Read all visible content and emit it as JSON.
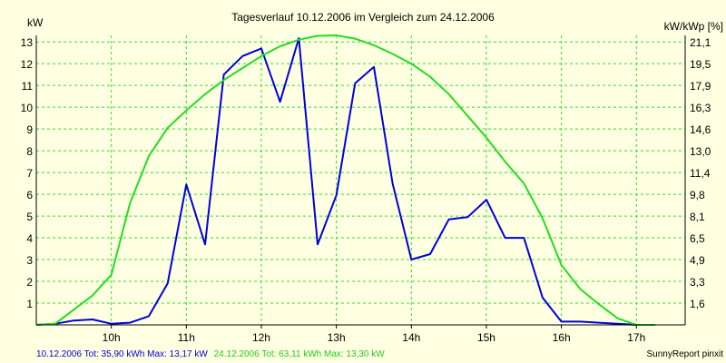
{
  "chart_data": {
    "type": "line",
    "title": "Tagesverlauf 10.12.2006 im Vergleich zum 24.12.2006",
    "ylabel_left": "kW",
    "ylabel_right": "kW/kWp [%]",
    "x_ticks": [
      {
        "label": "10h",
        "x": 10
      },
      {
        "label": "11h",
        "x": 11
      },
      {
        "label": "12h",
        "x": 12
      },
      {
        "label": "13h",
        "x": 13
      },
      {
        "label": "14h",
        "x": 14
      },
      {
        "label": "15h",
        "x": 15
      },
      {
        "label": "16h",
        "x": 16
      },
      {
        "label": "17h",
        "x": 17
      }
    ],
    "xlim": [
      9.0,
      17.65
    ],
    "ylim": [
      0,
      13.3
    ],
    "y_ticks_left": [
      "1",
      "2",
      "3",
      "4",
      "5",
      "6",
      "7",
      "8",
      "9",
      "10",
      "11",
      "12",
      "13"
    ],
    "y_ticks_right": [
      {
        "label": "1,6",
        "y": 1
      },
      {
        "label": "3,3",
        "y": 2
      },
      {
        "label": "4,9",
        "y": 3
      },
      {
        "label": "6,5",
        "y": 4
      },
      {
        "label": "8,1",
        "y": 5
      },
      {
        "label": "9,8",
        "y": 6
      },
      {
        "label": "11,4",
        "y": 7
      },
      {
        "label": "13,0",
        "y": 8
      },
      {
        "label": "14,6",
        "y": 9
      },
      {
        "label": "16,3",
        "y": 10
      },
      {
        "label": "17,9",
        "y": 11
      },
      {
        "label": "19,5",
        "y": 12
      },
      {
        "label": "21,1",
        "y": 13
      }
    ],
    "grid": true,
    "series": [
      {
        "color": "#0000dd",
        "points": [
          [
            9.0,
            0.0
          ],
          [
            9.25,
            0.05
          ],
          [
            9.5,
            0.2
          ],
          [
            9.75,
            0.25
          ],
          [
            10.0,
            0.05
          ],
          [
            10.25,
            0.1
          ],
          [
            10.5,
            0.4
          ],
          [
            10.75,
            1.9
          ],
          [
            11.0,
            6.45
          ],
          [
            11.25,
            3.7
          ],
          [
            11.5,
            11.5
          ],
          [
            11.75,
            12.35
          ],
          [
            12.0,
            12.7
          ],
          [
            12.25,
            10.25
          ],
          [
            12.5,
            13.17
          ],
          [
            12.75,
            3.7
          ],
          [
            13.0,
            5.95
          ],
          [
            13.25,
            11.1
          ],
          [
            13.5,
            11.85
          ],
          [
            13.75,
            6.5
          ],
          [
            14.0,
            3.0
          ],
          [
            14.25,
            3.25
          ],
          [
            14.5,
            4.85
          ],
          [
            14.75,
            4.95
          ],
          [
            15.0,
            5.75
          ],
          [
            15.25,
            4.0
          ],
          [
            15.5,
            4.0
          ],
          [
            15.75,
            1.25
          ],
          [
            16.0,
            0.15
          ],
          [
            16.25,
            0.15
          ],
          [
            16.5,
            0.1
          ],
          [
            16.75,
            0.05
          ],
          [
            17.0,
            0.0
          ],
          [
            17.25,
            0.0
          ]
        ]
      },
      {
        "color": "#22dd22",
        "points": [
          [
            9.0,
            0.0
          ],
          [
            9.25,
            0.05
          ],
          [
            9.5,
            0.7
          ],
          [
            9.75,
            1.35
          ],
          [
            10.0,
            2.3
          ],
          [
            10.25,
            5.6
          ],
          [
            10.5,
            7.75
          ],
          [
            10.75,
            9.05
          ],
          [
            11.0,
            9.85
          ],
          [
            11.25,
            10.6
          ],
          [
            11.5,
            11.25
          ],
          [
            11.75,
            11.8
          ],
          [
            12.0,
            12.35
          ],
          [
            12.25,
            12.8
          ],
          [
            12.5,
            13.1
          ],
          [
            12.75,
            13.28
          ],
          [
            13.0,
            13.3
          ],
          [
            13.25,
            13.15
          ],
          [
            13.5,
            12.85
          ],
          [
            13.75,
            12.45
          ],
          [
            14.0,
            12.0
          ],
          [
            14.25,
            11.4
          ],
          [
            14.5,
            10.6
          ],
          [
            14.75,
            9.6
          ],
          [
            15.0,
            8.6
          ],
          [
            15.25,
            7.5
          ],
          [
            15.5,
            6.5
          ],
          [
            15.75,
            4.9
          ],
          [
            16.0,
            2.75
          ],
          [
            16.25,
            1.65
          ],
          [
            16.5,
            0.95
          ],
          [
            16.75,
            0.3
          ],
          [
            17.0,
            0.0
          ],
          [
            17.25,
            0.0
          ]
        ]
      }
    ],
    "footer": {
      "series1": "10.12.2006 Tot: 35,90 kWh Max: 13,17 kW",
      "series2": "24.12.2006 Tot: 63,11 kWh Max: 13,30 kW",
      "credit": "SunnyReport pinxit"
    }
  },
  "colors": {
    "background": "#ffffe1",
    "grid": "#33dd33",
    "axis": "#000000"
  }
}
